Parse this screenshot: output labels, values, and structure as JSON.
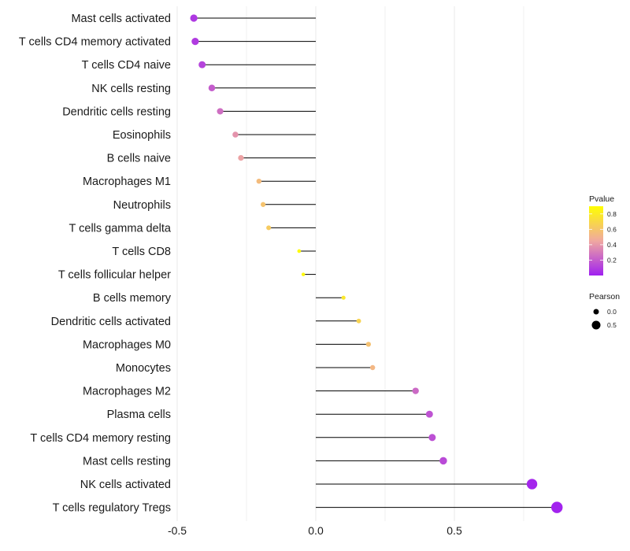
{
  "chart_data": {
    "type": "lollipop",
    "title": "",
    "xlabel": "",
    "ylabel": "",
    "xlim": [
      -0.5,
      0.9
    ],
    "x_ticks": [
      -0.5,
      0.0,
      0.5
    ],
    "x_tick_labels": [
      "-0.5",
      "0.0",
      "0.5"
    ],
    "grid": true,
    "categories": [
      "Mast cells activated",
      "T cells CD4 memory activated",
      "T cells CD4 naive",
      "NK cells resting",
      "Dendritic cells resting",
      "Eosinophils",
      "B cells naive",
      "Macrophages M1",
      "Neutrophils",
      "T cells gamma delta",
      "T cells CD8",
      "T cells follicular helper",
      "B cells memory",
      "Dendritic cells activated",
      "Macrophages M0",
      "Monocytes",
      "Macrophages M2",
      "Plasma cells",
      "T cells CD4 memory resting",
      "Mast cells resting",
      "NK cells activated",
      "T cells regulatory  Tregs"
    ],
    "values": [
      -0.44,
      -0.435,
      -0.41,
      -0.375,
      -0.345,
      -0.29,
      -0.27,
      -0.205,
      -0.19,
      -0.17,
      -0.06,
      -0.045,
      0.1,
      0.155,
      0.19,
      0.205,
      0.36,
      0.41,
      0.42,
      0.46,
      0.78,
      0.87
    ],
    "pvalues": [
      0.08,
      0.09,
      0.12,
      0.2,
      0.26,
      0.38,
      0.43,
      0.55,
      0.59,
      0.63,
      0.88,
      0.87,
      0.78,
      0.67,
      0.58,
      0.53,
      0.24,
      0.17,
      0.16,
      0.14,
      0.02,
      0.01
    ],
    "legends": {
      "color": {
        "title": "Pvalue",
        "ticks": [
          0.8,
          0.6,
          0.4,
          0.2
        ],
        "tick_labels": [
          "0.8",
          "0.6",
          "0.4",
          "0.2"
        ],
        "range": [
          0.0,
          0.9
        ],
        "low_color": "#a020f0",
        "high_color": "#ffff00",
        "mid_color": "#f0a8a0"
      },
      "size": {
        "title": "Pearson",
        "ticks": [
          0.0,
          0.5
        ],
        "tick_labels": [
          "0.0",
          "0.5"
        ]
      }
    }
  },
  "colors": {
    "stem": "#000000",
    "grid": "#ececec",
    "text": "#1a1a1a"
  }
}
